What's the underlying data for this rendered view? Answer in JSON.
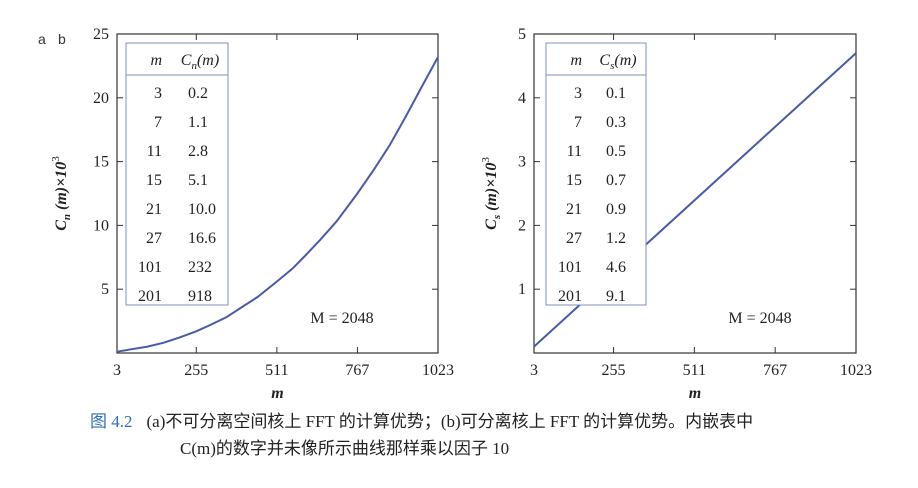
{
  "panel_labels": [
    "a",
    "b"
  ],
  "chart_data": [
    {
      "type": "line",
      "panel": "a",
      "ylabel": "C_n (m)×10^3",
      "ylabel_parts": {
        "main": "C",
        "sub": "n",
        "paren": " (m)×10",
        "sup": "3"
      },
      "xlabel": "m",
      "xlim": [
        3,
        1023
      ],
      "ylim": [
        0,
        25
      ],
      "xticks": [
        3,
        255,
        511,
        767,
        1023
      ],
      "yticks": [
        5,
        10,
        15,
        20,
        25
      ],
      "series": [
        {
          "values_x": [
            3,
            50,
            100,
            150,
            200,
            255,
            300,
            350,
            400,
            450,
            511,
            560,
            600,
            650,
            700,
            767,
            820,
            870,
            920,
            970,
            1023
          ],
          "values_y": [
            0.1,
            0.3,
            0.5,
            0.8,
            1.2,
            1.7,
            2.2,
            2.8,
            3.6,
            4.4,
            5.6,
            6.6,
            7.6,
            8.9,
            10.3,
            12.5,
            14.4,
            16.3,
            18.5,
            20.8,
            23.2
          ]
        }
      ],
      "inset_table": {
        "headers": [
          "m",
          "C_n(m)"
        ],
        "header_parts": {
          "main": "C",
          "sub": "n",
          "rest": "(m)"
        },
        "rows": [
          [
            "3",
            "0.2"
          ],
          [
            "7",
            "1.1"
          ],
          [
            "11",
            "2.8"
          ],
          [
            "15",
            "5.1"
          ],
          [
            "21",
            "10.0"
          ],
          [
            "27",
            "16.6"
          ],
          [
            "101",
            "232"
          ],
          [
            "201",
            "918"
          ]
        ]
      },
      "annotation": "M = 2048"
    },
    {
      "type": "line",
      "panel": "b",
      "ylabel": "C_s (m)×10^3",
      "ylabel_parts": {
        "main": "C",
        "sub": "s",
        "paren": " (m)×10",
        "sup": "3"
      },
      "xlabel": "m",
      "xlim": [
        3,
        1023
      ],
      "ylim": [
        0,
        5
      ],
      "xticks": [
        3,
        255,
        511,
        767,
        1023
      ],
      "yticks": [
        1,
        2,
        3,
        4,
        5
      ],
      "series": [
        {
          "values_x": [
            3,
            1023
          ],
          "values_y": [
            0.1,
            4.7
          ]
        }
      ],
      "inset_table": {
        "headers": [
          "m",
          "C_s(m)"
        ],
        "header_parts": {
          "main": "C",
          "sub": "s",
          "rest": "(m)"
        },
        "rows": [
          [
            "3",
            "0.1"
          ],
          [
            "7",
            "0.3"
          ],
          [
            "11",
            "0.5"
          ],
          [
            "15",
            "0.7"
          ],
          [
            "21",
            "0.9"
          ],
          [
            "27",
            "1.2"
          ],
          [
            "101",
            "4.6"
          ],
          [
            "201",
            "9.1"
          ]
        ]
      },
      "annotation": "M = 2048"
    }
  ],
  "caption": {
    "fig_num": "图 4.2",
    "line1": "(a)不可分离空间核上 FFT 的计算优势；(b)可分离核上 FFT 的计算优势。内嵌表中",
    "line2": "C(m)的数字并未像所示曲线那样乘以因子 10"
  },
  "colors": {
    "curve": "#4a5aa8",
    "table_border": "#8090c0",
    "axis": "#333333"
  }
}
